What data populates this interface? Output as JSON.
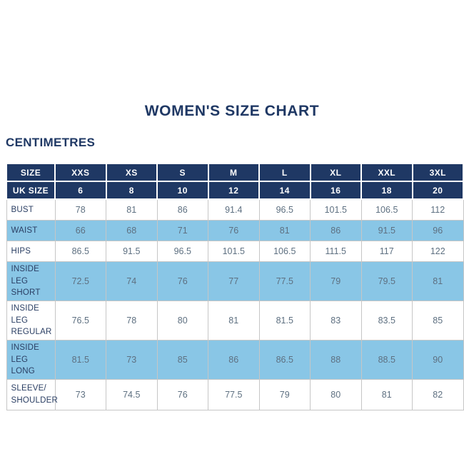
{
  "page": {
    "title": "WOMEN'S SIZE CHART",
    "units_label": "CENTIMETRES"
  },
  "colors": {
    "header_navy": "#1F3864",
    "shaded_row_blue": "#89C6E6",
    "data_text": "#5E7081",
    "label_text": "#2A3E63",
    "border_gray": "#C6C6C6",
    "header_text": "#FFFFFF"
  },
  "chart_data": {
    "type": "table",
    "title": "WOMEN'S SIZE CHART",
    "units_label": "CENTIMETRES",
    "header_rows": [
      {
        "label": "SIZE",
        "values": [
          "XXS",
          "XS",
          "S",
          "M",
          "L",
          "XL",
          "XXL",
          "3XL"
        ]
      },
      {
        "label": "UK SIZE",
        "values": [
          "6",
          "8",
          "10",
          "12",
          "14",
          "16",
          "18",
          "20"
        ]
      }
    ],
    "rows": [
      {
        "label": "BUST",
        "shaded": false,
        "tall": false,
        "values": [
          78,
          81,
          86,
          91.4,
          96.5,
          101.5,
          106.5,
          112
        ]
      },
      {
        "label": "WAIST",
        "shaded": true,
        "tall": false,
        "values": [
          66,
          68,
          71,
          76,
          81,
          86,
          91.5,
          96
        ]
      },
      {
        "label": "HIPS",
        "shaded": false,
        "tall": false,
        "values": [
          86.5,
          91.5,
          96.5,
          101.5,
          106.5,
          111.5,
          117,
          122
        ]
      },
      {
        "label": "INSIDE LEG SHORT",
        "shaded": true,
        "tall": true,
        "values": [
          72.5,
          74,
          76,
          77,
          77.5,
          79,
          79.5,
          81
        ]
      },
      {
        "label": "INSIDE LEG REGULAR",
        "shaded": false,
        "tall": true,
        "values": [
          76.5,
          78,
          80,
          81,
          81.5,
          83,
          83.5,
          85
        ]
      },
      {
        "label": "INSIDE LEG LONG",
        "shaded": true,
        "tall": true,
        "values": [
          81.5,
          73,
          85,
          86,
          86.5,
          88,
          88.5,
          90
        ]
      },
      {
        "label": "SLEEVE/ SHOULDER",
        "shaded": false,
        "tall": true,
        "values": [
          73,
          74.5,
          76,
          77.5,
          79,
          80,
          81,
          82
        ]
      }
    ]
  }
}
